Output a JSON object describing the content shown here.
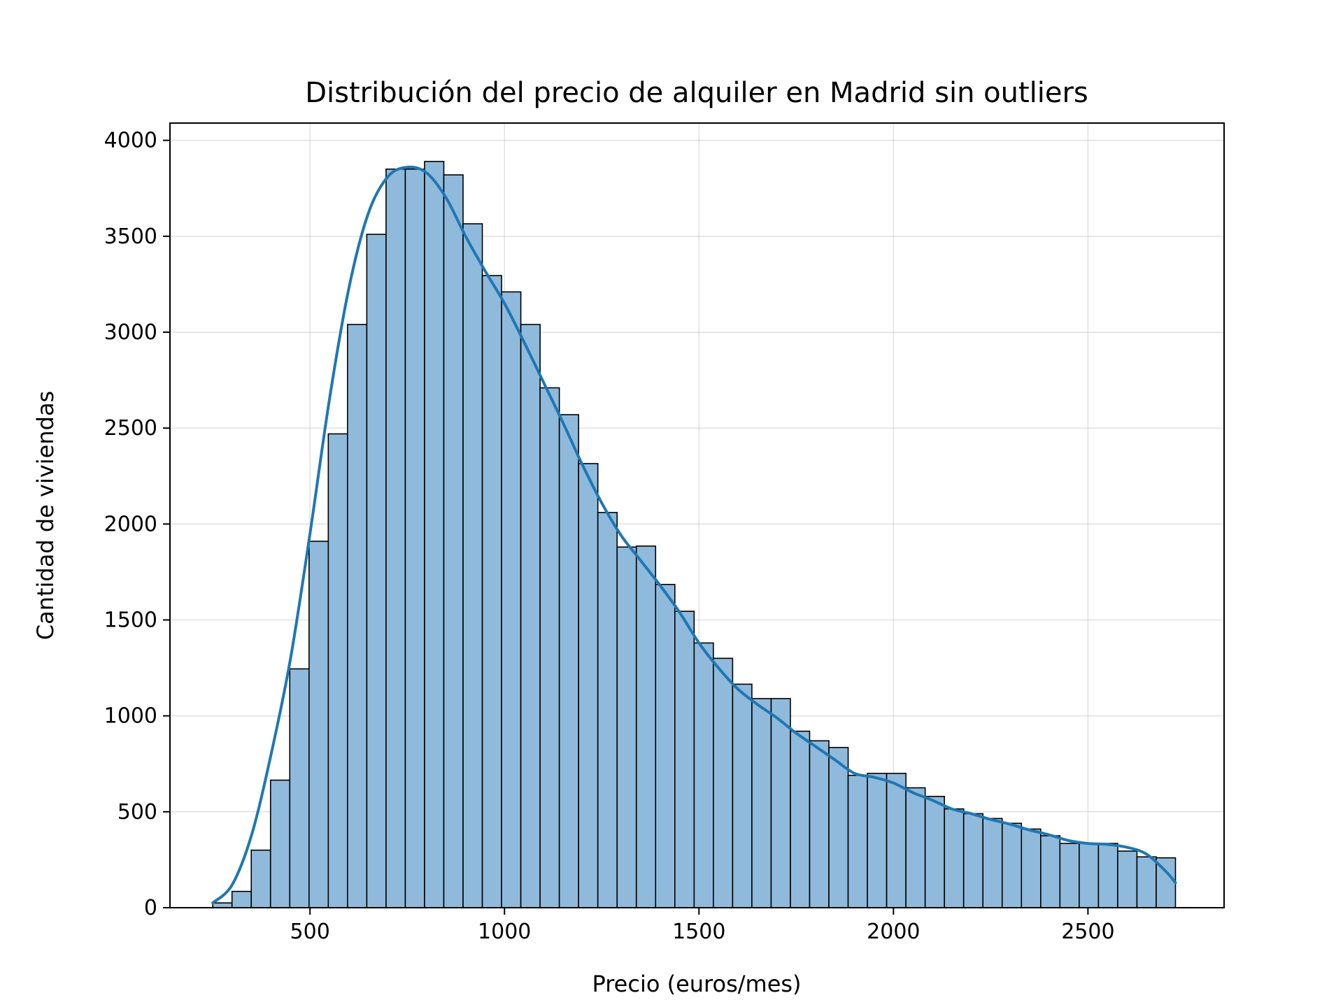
{
  "chart_data": {
    "type": "bar",
    "title": "Distribución del precio de alquiler en Madrid sin outliers",
    "xlabel": "Precio (euros/mes)",
    "ylabel": "Cantidad de viviendas",
    "xlim": [
      140,
      2850
    ],
    "ylim": [
      0,
      4090
    ],
    "xticks": [
      500,
      1000,
      1500,
      2000,
      2500
    ],
    "yticks": [
      0,
      500,
      1000,
      1500,
      2000,
      2500,
      3000,
      3500,
      4000
    ],
    "grid": true,
    "bin_start": 250,
    "bin_width": 49.5,
    "values": [
      25,
      85,
      300,
      665,
      1245,
      1910,
      2470,
      3040,
      3510,
      3850,
      3850,
      3890,
      3820,
      3565,
      3295,
      3210,
      3040,
      2710,
      2570,
      2315,
      2060,
      1880,
      1885,
      1685,
      1545,
      1380,
      1300,
      1165,
      1090,
      1090,
      920,
      870,
      835,
      690,
      700,
      700,
      625,
      580,
      515,
      490,
      465,
      440,
      410,
      375,
      335,
      335,
      335,
      295,
      265,
      260
    ],
    "kde": {
      "x": [
        250,
        300,
        350,
        400,
        450,
        500,
        550,
        600,
        650,
        700,
        750,
        800,
        850,
        900,
        950,
        1000,
        1050,
        1100,
        1150,
        1200,
        1250,
        1300,
        1350,
        1400,
        1450,
        1500,
        1550,
        1600,
        1650,
        1700,
        1750,
        1800,
        1850,
        1900,
        1950,
        2000,
        2050,
        2100,
        2150,
        2200,
        2250,
        2300,
        2350,
        2400,
        2450,
        2500,
        2550,
        2600,
        2650,
        2700,
        2725
      ],
      "y": [
        25,
        120,
        380,
        800,
        1300,
        1950,
        2650,
        3230,
        3620,
        3810,
        3860,
        3830,
        3700,
        3500,
        3320,
        3150,
        2950,
        2740,
        2530,
        2310,
        2110,
        1940,
        1810,
        1680,
        1540,
        1380,
        1250,
        1140,
        1060,
        990,
        910,
        840,
        770,
        700,
        680,
        650,
        600,
        560,
        515,
        490,
        460,
        435,
        405,
        380,
        350,
        335,
        330,
        315,
        280,
        190,
        130
      ]
    }
  }
}
